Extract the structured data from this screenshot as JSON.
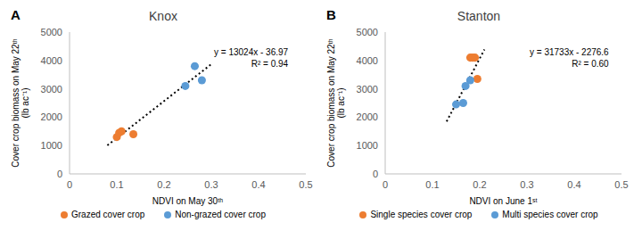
{
  "chart_data": [
    {
      "type": "scatter",
      "panel_label": "A",
      "title": "Knox",
      "x_label": "NDVI on May 30ᵗʰ",
      "y_label": [
        "Cover crop biomass on May 22ᵗʰ",
        "(lb ac⁻¹)"
      ],
      "annotations": [
        "y = 13024x - 36.97",
        "R² = 0.94"
      ],
      "xlim": [
        0,
        0.5
      ],
      "xticks": [
        0,
        0.1,
        0.2,
        0.3,
        0.4,
        0.5
      ],
      "ylim": [
        0,
        5000
      ],
      "yticks": [
        0,
        1000,
        2000,
        3000,
        4000,
        5000
      ],
      "grid": false,
      "series": [
        {
          "name": "Grazed cover crop",
          "color": "#ed7d31",
          "marker": "circle",
          "x": [
            0.1,
            0.105,
            0.11,
            0.135
          ],
          "values": [
            1300,
            1450,
            1500,
            1400
          ]
        },
        {
          "name": "Non-grazed cover crop",
          "color": "#5b9bd5",
          "marker": "circle",
          "x": [
            0.245,
            0.265,
            0.28
          ],
          "values": [
            3100,
            3800,
            3300
          ]
        },
        {
          "type": "line",
          "line_style": "dotted",
          "color": "#000000",
          "x": [
            0.08,
            0.3
          ],
          "values": [
            1005,
            3870
          ]
        }
      ]
    },
    {
      "type": "scatter",
      "panel_label": "B",
      "title": "Stanton",
      "x_label": "NDVI on June 1ˢᵗ",
      "y_label": [
        "Cover crop biomass on May 22ᵗʰ",
        "(lb ac⁻¹)"
      ],
      "annotations": [
        "y = 31733x - 2276.6",
        "R² = 0.60"
      ],
      "xlim": [
        0,
        0.5
      ],
      "xticks": [
        0,
        0.1,
        0.2,
        0.3,
        0.4,
        0.5
      ],
      "ylim": [
        0,
        5000
      ],
      "yticks": [
        0,
        1000,
        2000,
        3000,
        4000,
        5000
      ],
      "grid": false,
      "series": [
        {
          "name": "Single species cover crop",
          "color": "#ed7d31",
          "marker": "circle",
          "x": [
            0.18,
            0.185,
            0.19,
            0.195
          ],
          "values": [
            4100,
            4100,
            4100,
            3350
          ]
        },
        {
          "name": "Multi species cover crop",
          "color": "#5b9bd5",
          "marker": "circle",
          "x": [
            0.15,
            0.165,
            0.17,
            0.18
          ],
          "values": [
            2450,
            2500,
            3100,
            3300
          ]
        },
        {
          "type": "line",
          "line_style": "dotted",
          "color": "#000000",
          "x": [
            0.13,
            0.21
          ],
          "values": [
            1848,
            4387
          ]
        }
      ]
    }
  ]
}
